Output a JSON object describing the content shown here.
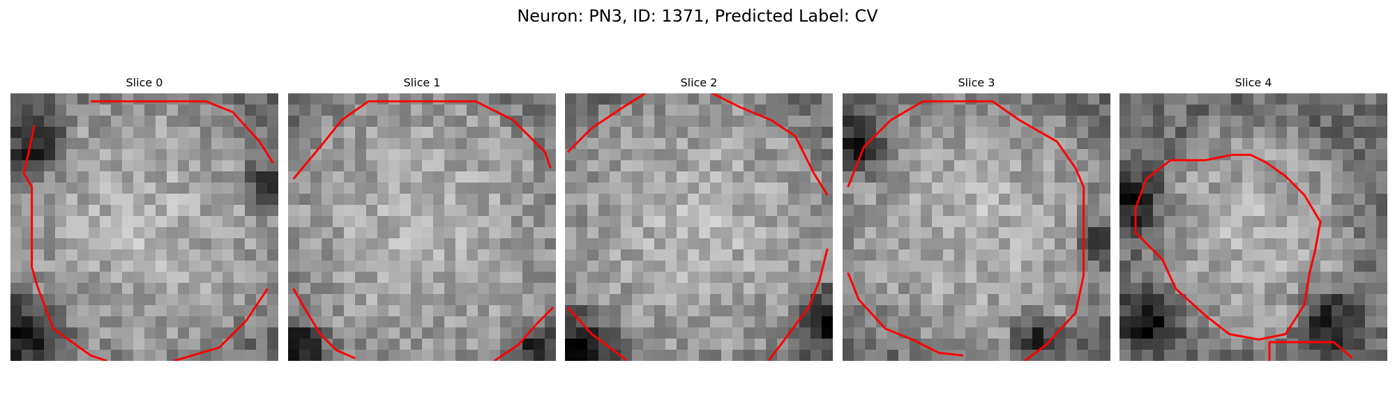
{
  "figure": {
    "title": "Neuron: PN3, ID: 1371, Predicted Label: CV"
  },
  "panels": [
    {
      "title": "Slice 0"
    },
    {
      "title": "Slice 1"
    },
    {
      "title": "Slice 2"
    },
    {
      "title": "Slice 3"
    },
    {
      "title": "Slice 4"
    }
  ],
  "colors": {
    "contour": "#ff0000",
    "background": "#ffffff"
  }
}
